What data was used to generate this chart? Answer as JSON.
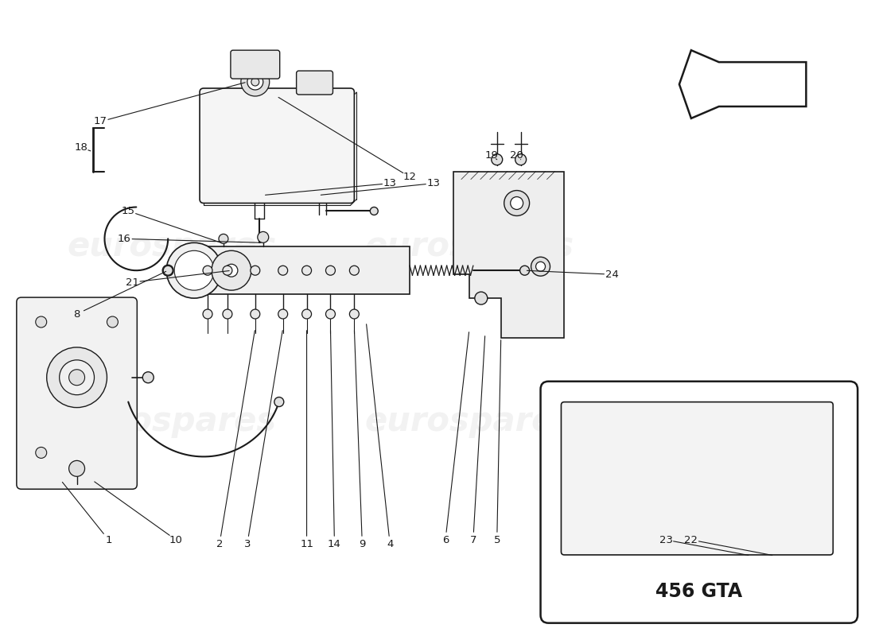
{
  "bg": "#ffffff",
  "lc": "#1a1a1a",
  "wm_color": "#cccccc",
  "wm_alpha": 0.25,
  "wm_text": "eurospares",
  "gta_text": "456 GTA",
  "figsize": [
    11.0,
    8.0
  ],
  "dpi": 100,
  "arrow_outline": true
}
